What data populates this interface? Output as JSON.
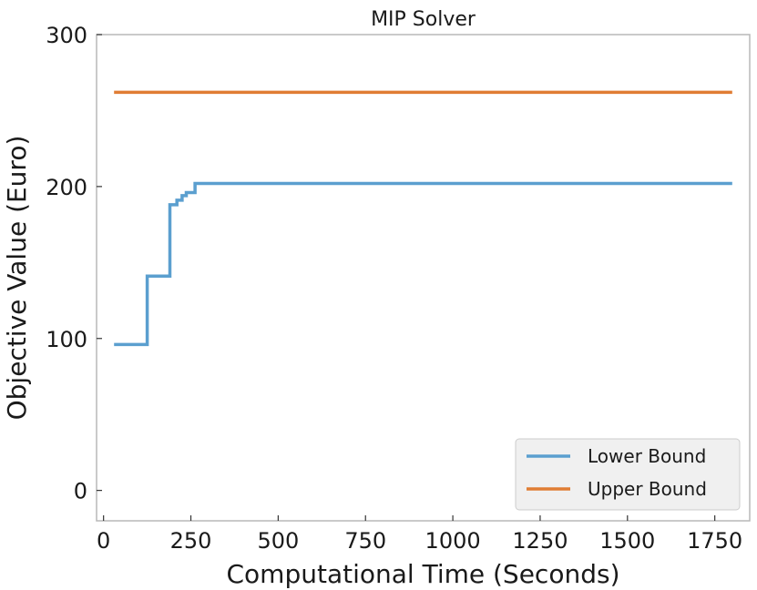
{
  "chart_data": {
    "type": "line",
    "title": "MIP Solver",
    "xlabel": "Computational Time (Seconds)",
    "ylabel": "Objective Value (Euro)",
    "xlim": [
      -20,
      1850
    ],
    "ylim": [
      -20,
      300
    ],
    "xticks": [
      0,
      250,
      500,
      750,
      1000,
      1250,
      1500,
      1750
    ],
    "yticks": [
      0,
      100,
      200,
      300
    ],
    "xtick_labels": [
      "0",
      "250",
      "500",
      "750",
      "1000",
      "1250",
      "1500",
      "1750"
    ],
    "ytick_labels": [
      "0",
      "100",
      "200",
      "300"
    ],
    "grid": false,
    "legend_position": "lower-right",
    "series": [
      {
        "name": "Lower Bound",
        "color": "#5b9fcf",
        "step": true,
        "x": [
          30,
          125,
          190,
          210,
          225,
          237,
          262,
          1800
        ],
        "y": [
          96,
          141,
          188,
          191,
          194,
          196,
          202,
          202
        ]
      },
      {
        "name": "Upper Bound",
        "color": "#e07d34",
        "step": false,
        "x": [
          30,
          1800
        ],
        "y": [
          262,
          262
        ]
      }
    ]
  }
}
